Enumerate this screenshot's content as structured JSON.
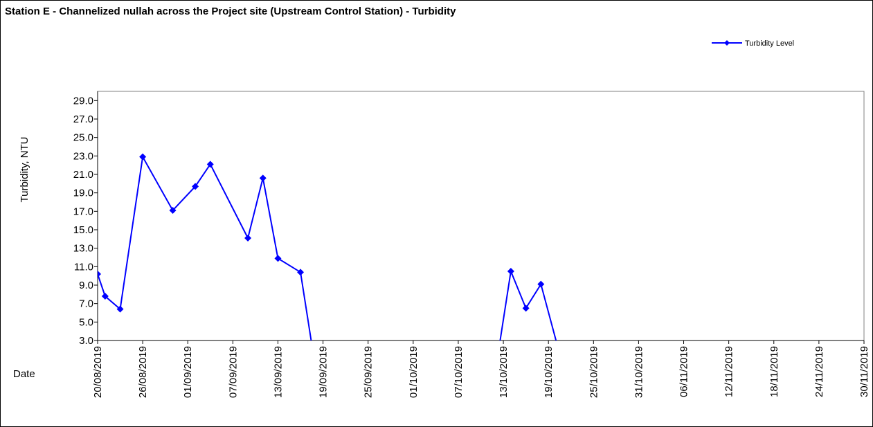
{
  "chart_data": {
    "type": "line",
    "title": "Station E - Channelized nullah across the Project site (Upstream Control Station) - Turbidity",
    "x_label": "Date",
    "y_label": "Turbidity, NTU",
    "x": [
      "20/08/2019",
      "21/08/2019",
      "23/08/2019",
      "26/08/2019",
      "30/08/2019",
      "02/09/2019",
      "04/09/2019",
      "09/09/2019",
      "11/09/2019",
      "13/09/2019",
      "16/09/2019",
      "18/09/2019",
      "12/10/2019",
      "14/10/2019",
      "16/10/2019",
      "18/10/2019",
      "21/10/2019"
    ],
    "series": [
      {
        "name": "Turbidity Level",
        "color": "#0000ff",
        "values": [
          10.2,
          7.8,
          6.4,
          22.9,
          17.1,
          19.7,
          22.1,
          14.1,
          20.6,
          11.9,
          10.4,
          0,
          0,
          10.5,
          6.5,
          9.1,
          0
        ]
      }
    ],
    "xlim": [
      "20/08/2019",
      "30/11/2019"
    ],
    "xticks": [
      "20/08/2019",
      "26/08/2019",
      "01/09/2019",
      "07/09/2019",
      "13/09/2019",
      "19/09/2019",
      "25/09/2019",
      "01/10/2019",
      "07/10/2019",
      "13/10/2019",
      "19/10/2019",
      "25/10/2019",
      "31/10/2019",
      "06/11/2019",
      "12/11/2019",
      "18/11/2019",
      "24/11/2019",
      "30/11/2019"
    ],
    "ylim": [
      3,
      30
    ],
    "yticks": [
      {
        "value": 3,
        "label": "3.0"
      },
      {
        "value": 5,
        "label": "5.0"
      },
      {
        "value": 7,
        "label": "7.0"
      },
      {
        "value": 9,
        "label": "9.0"
      },
      {
        "value": 11,
        "label": "11.0"
      },
      {
        "value": 13,
        "label": "13.0"
      },
      {
        "value": 15,
        "label": "15.0"
      },
      {
        "value": 17,
        "label": "17.0"
      },
      {
        "value": 19,
        "label": "19.0"
      },
      {
        "value": 21,
        "label": "21.0"
      },
      {
        "value": 23,
        "label": "23.0"
      },
      {
        "value": 25,
        "label": "25.0"
      },
      {
        "value": 27,
        "label": "27.0"
      },
      {
        "value": 29,
        "label": "29.0"
      }
    ],
    "legend": "top-right"
  }
}
